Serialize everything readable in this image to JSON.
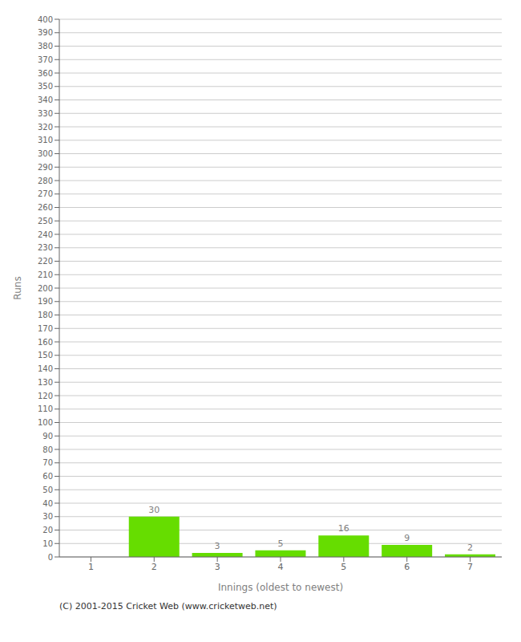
{
  "chart_data": {
    "type": "bar",
    "xlabel": "Innings (oldest to newest)",
    "ylabel": "Runs",
    "categories": [
      1,
      2,
      3,
      4,
      5,
      6,
      7
    ],
    "values": [
      0,
      30,
      3,
      5,
      16,
      9,
      2
    ],
    "color": "#66dd00",
    "ylim": [
      0,
      400
    ],
    "yticks": [
      0,
      10,
      20,
      30,
      40,
      50,
      60,
      70,
      80,
      90,
      100,
      110,
      120,
      130,
      140,
      150,
      160,
      170,
      180,
      190,
      200,
      210,
      220,
      230,
      240,
      250,
      260,
      270,
      280,
      290,
      300,
      310,
      320,
      330,
      340,
      350,
      360,
      370,
      380,
      390,
      400
    ],
    "grid": true,
    "data_labels": true,
    "annotations": [
      "(C) 2001-2015 Cricket Web (www.cricketweb.net)"
    ]
  }
}
